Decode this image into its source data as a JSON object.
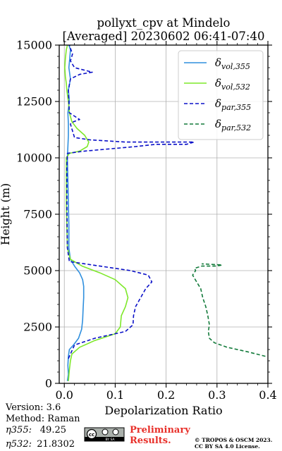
{
  "chart_data": {
    "type": "line",
    "title": "pollyxt_cpv at Mindelo",
    "subtitle": "[Averaged] 20230602 06:41-07:40",
    "xlabel": "Depolarization Ratio",
    "ylabel": "Height (m)",
    "xlim": [
      -0.01,
      0.4
    ],
    "ylim": [
      0,
      15000
    ],
    "xticks": [
      "0.0",
      "0.1",
      "0.2",
      "0.3",
      "0.4"
    ],
    "yticks": [
      "0",
      "2500",
      "5000",
      "7500",
      "10000",
      "12500",
      "15000"
    ],
    "grid": true,
    "legend_position": "top-right",
    "series": [
      {
        "name": "δvol,355",
        "legend_main": "δ",
        "legend_sub": "vol,355",
        "color": "#2f8fde",
        "dash": "solid",
        "points": [
          [
            0.006,
            100
          ],
          [
            0.008,
            400
          ],
          [
            0.007,
            800
          ],
          [
            0.008,
            1200
          ],
          [
            0.01,
            1500
          ],
          [
            0.018,
            1700
          ],
          [
            0.028,
            2000
          ],
          [
            0.034,
            2400
          ],
          [
            0.036,
            2800
          ],
          [
            0.037,
            3300
          ],
          [
            0.038,
            3800
          ],
          [
            0.038,
            4300
          ],
          [
            0.036,
            4600
          ],
          [
            0.03,
            4900
          ],
          [
            0.02,
            5200
          ],
          [
            0.012,
            5500
          ],
          [
            0.009,
            6000
          ],
          [
            0.009,
            7000
          ],
          [
            0.008,
            8000
          ],
          [
            0.007,
            9000
          ],
          [
            0.006,
            10000
          ],
          [
            0.007,
            10500
          ],
          [
            0.008,
            11000
          ],
          [
            0.008,
            11500
          ],
          [
            0.007,
            12000
          ],
          [
            0.01,
            12500
          ],
          [
            0.008,
            13000
          ],
          [
            0.012,
            13500
          ],
          [
            0.009,
            14000
          ],
          [
            0.011,
            14500
          ],
          [
            0.012,
            14800
          ],
          [
            0.009,
            15000
          ]
        ]
      },
      {
        "name": "δvol,532",
        "legend_main": "δ",
        "legend_sub": "vol,532",
        "color": "#7ee82a",
        "dash": "solid",
        "points": [
          [
            0.008,
            100
          ],
          [
            0.01,
            600
          ],
          [
            0.012,
            1000
          ],
          [
            0.015,
            1300
          ],
          [
            0.03,
            1600
          ],
          [
            0.06,
            1900
          ],
          [
            0.1,
            2200
          ],
          [
            0.11,
            2500
          ],
          [
            0.112,
            3000
          ],
          [
            0.12,
            3400
          ],
          [
            0.125,
            3800
          ],
          [
            0.12,
            4200
          ],
          [
            0.1,
            4600
          ],
          [
            0.07,
            4900
          ],
          [
            0.035,
            5200
          ],
          [
            0.012,
            5500
          ],
          [
            0.006,
            6000
          ],
          [
            0.005,
            7000
          ],
          [
            0.004,
            8000
          ],
          [
            0.004,
            9000
          ],
          [
            0.004,
            10000
          ],
          [
            0.01,
            10200
          ],
          [
            0.03,
            10300
          ],
          [
            0.045,
            10500
          ],
          [
            0.048,
            10700
          ],
          [
            0.04,
            11000
          ],
          [
            0.025,
            11300
          ],
          [
            0.015,
            11600
          ],
          [
            0.01,
            12000
          ],
          [
            0.008,
            12500
          ],
          [
            0.005,
            13000
          ],
          [
            0.004,
            13300
          ],
          [
            0.002,
            13600
          ],
          [
            0.001,
            14000
          ],
          [
            0.002,
            14400
          ],
          [
            0.004,
            14800
          ],
          [
            0.006,
            15000
          ]
        ]
      },
      {
        "name": "δpar,355",
        "legend_main": "δ",
        "legend_sub": "par,355",
        "color": "#0a10c8",
        "dash": "dashed",
        "points": [
          [
            0.008,
            1100
          ],
          [
            0.012,
            1300
          ],
          [
            0.02,
            1700
          ],
          [
            0.06,
            2000
          ],
          [
            0.12,
            2300
          ],
          [
            0.135,
            2600
          ],
          [
            0.136,
            3000
          ],
          [
            0.14,
            3400
          ],
          [
            0.15,
            3800
          ],
          [
            0.16,
            4200
          ],
          [
            0.172,
            4500
          ],
          [
            0.165,
            4800
          ],
          [
            0.13,
            5000
          ],
          [
            0.07,
            5200
          ],
          [
            0.01,
            5400
          ],
          [
            0.006,
            6000
          ],
          [
            0.005,
            8000
          ],
          [
            0.005,
            9600
          ],
          [
            0.006,
            10200
          ],
          [
            0.04,
            10300
          ],
          [
            0.09,
            10400
          ],
          [
            0.14,
            10500
          ],
          [
            0.18,
            10600
          ],
          [
            0.24,
            10600
          ],
          [
            0.255,
            10700
          ],
          [
            0.12,
            10700
          ],
          [
            0.05,
            10800
          ],
          [
            0.02,
            10900
          ],
          [
            0.012,
            11500
          ],
          [
            0.018,
            11600
          ],
          [
            0.03,
            11700
          ],
          [
            0.01,
            12000
          ],
          [
            0.008,
            13000
          ],
          [
            0.012,
            13500
          ],
          [
            0.03,
            13700
          ],
          [
            0.055,
            13800
          ],
          [
            0.02,
            14000
          ],
          [
            0.012,
            14300
          ],
          [
            0.016,
            14600
          ],
          [
            0.01,
            15000
          ]
        ]
      },
      {
        "name": "δpar,532",
        "legend_main": "δ",
        "legend_sub": "par,532",
        "color": "#127a3a",
        "dash": "dashed",
        "points": [
          [
            0.395,
            1200
          ],
          [
            0.36,
            1400
          ],
          [
            0.32,
            1600
          ],
          [
            0.295,
            1800
          ],
          [
            0.285,
            2000
          ],
          [
            0.283,
            2300
          ],
          [
            0.285,
            2600
          ],
          [
            0.282,
            3000
          ],
          [
            0.278,
            3400
          ],
          [
            0.272,
            3800
          ],
          [
            0.268,
            4200
          ],
          [
            0.26,
            4500
          ],
          [
            0.252,
            4800
          ],
          [
            0.258,
            5000
          ],
          [
            0.256,
            5100
          ],
          [
            0.27,
            5200
          ],
          [
            0.3,
            5200
          ],
          [
            0.31,
            5250
          ],
          [
            0.27,
            5300
          ]
        ]
      }
    ],
    "annotations": {
      "version": "Version: 3.6",
      "method": "Method: Raman",
      "eta355_label": "η355:",
      "eta355_value": "49.25",
      "eta532_label": "η532:",
      "eta532_value": "21.8302",
      "preliminary_line1": "Preliminary",
      "preliminary_line2": "Results.",
      "preliminary_color": "#e8302a",
      "copyright_line1": "© TROPOS & OSCM 2023.",
      "copyright_line2": "CC BY SA 4.0 License.",
      "license_badge_text": "BY SA"
    }
  }
}
